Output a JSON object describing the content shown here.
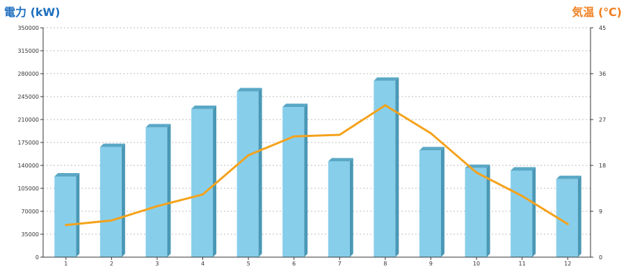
{
  "chart_data": {
    "type": "bar",
    "categories": [
      "1",
      "2",
      "3",
      "4",
      "5",
      "6",
      "7",
      "8",
      "9",
      "10",
      "11",
      "12"
    ],
    "series": [
      {
        "type": "bar",
        "axis": "left",
        "values": [
          123000,
          168000,
          198000,
          226000,
          253000,
          229000,
          146000,
          269000,
          163000,
          136000,
          132000,
          119000
        ]
      },
      {
        "type": "line",
        "axis": "right",
        "values": [
          6.3,
          7.2,
          10.0,
          12.3,
          20.0,
          23.7,
          24.0,
          29.8,
          24.3,
          16.6,
          12.0,
          6.5
        ]
      }
    ],
    "left_axis": {
      "label": "電力 (kW)",
      "min": 0,
      "max": 350000,
      "ticks": [
        "0",
        "35000",
        "70000",
        "105000",
        "140000",
        "175000",
        "210000",
        "245000",
        "280000",
        "315000",
        "350000"
      ]
    },
    "right_axis": {
      "label": "気温 (℃)",
      "min": 0,
      "max": 45,
      "ticks": [
        "0",
        "9",
        "18",
        "27",
        "36",
        "45"
      ]
    },
    "grid": true,
    "legend": "none"
  },
  "colors": {
    "bar_front": "#87ceeb",
    "bar_side": "#4a98b5",
    "bar_top": "#5aa8c6",
    "line": "#f5a21b",
    "left_label": "#1f6fbf",
    "right_label": "#f07f1e",
    "axis": "#333333",
    "grid": "#bbbbbb"
  }
}
